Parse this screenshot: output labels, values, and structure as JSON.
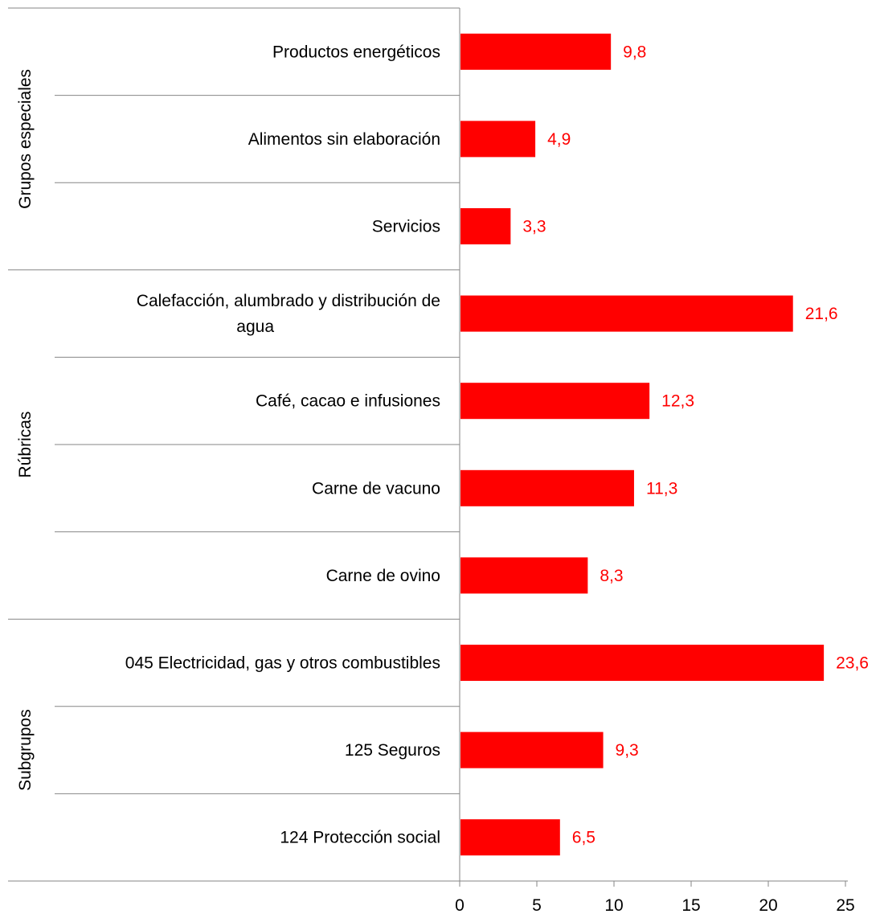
{
  "chart_data": {
    "type": "bar",
    "orientation": "horizontal",
    "groups": [
      {
        "name": "Grupos especiales",
        "start": 0,
        "end": 3
      },
      {
        "name": "Rúbricas",
        "start": 3,
        "end": 7
      },
      {
        "name": "Subgrupos",
        "start": 7,
        "end": 10
      }
    ],
    "categories": [
      "Productos energéticos",
      "Alimentos sin elaboración",
      "Servicios",
      [
        "Calefacción, alumbrado y distribución de",
        "agua"
      ],
      "Café, cacao e infusiones",
      "Carne de vacuno",
      "Carne de ovino",
      "045 Electricidad, gas y otros combustibles",
      "125 Seguros",
      "124 Protección social"
    ],
    "values": [
      9.8,
      4.9,
      3.3,
      21.6,
      12.3,
      11.3,
      8.3,
      23.6,
      9.3,
      6.5
    ],
    "value_labels": [
      "9,8",
      "4,9",
      "3,3",
      "21,6",
      "12,3",
      "11,3",
      "8,3",
      "23,6",
      "9,3",
      "6,5"
    ],
    "xlim": [
      0,
      25
    ],
    "xticks": [
      0,
      5,
      10,
      15,
      20,
      25
    ],
    "bar_color": "#ff0000",
    "label_color": "#ff0000",
    "grid": false,
    "legend": "none"
  }
}
